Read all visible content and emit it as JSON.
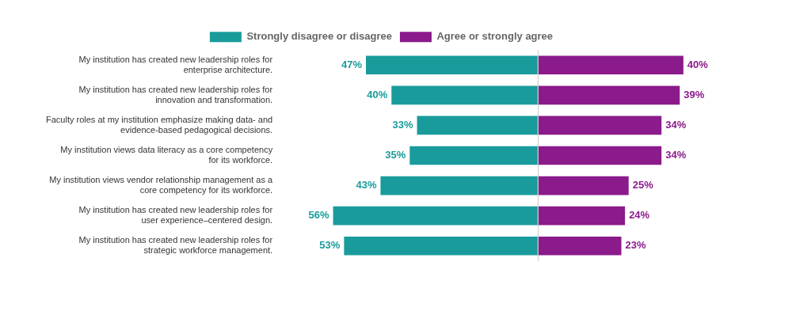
{
  "chart_data": {
    "type": "bar",
    "orientation": "horizontal",
    "categories": [
      "My institution has created new leadership roles for\nenterprise architecture.",
      "My institution has created new leadership roles for\ninnovation and transformation.",
      "Faculty roles at my institution emphasize making data- and\nevidence-based pedagogical decisions.",
      "My institution views data literacy as a core competency\nfor its workforce.",
      "My institution views vendor relationship management as a\ncore competency for its workforce.",
      "My institution has created new leadership roles for\nuser experience–centered design.",
      "My institution has created new leadership roles for\nstrategic workforce management."
    ],
    "series": [
      {
        "name": "Strongly disagree or disagree",
        "color": "#1A9B9B",
        "values": [
          47,
          40,
          33,
          35,
          43,
          56,
          53
        ],
        "value_labels": [
          "47%",
          "40%",
          "33%",
          "35%",
          "43%",
          "56%",
          "53%"
        ]
      },
      {
        "name": "Agree or strongly agree",
        "color": "#8B1A8B",
        "values": [
          40,
          39,
          34,
          34,
          25,
          24,
          23
        ],
        "value_labels": [
          "40%",
          "39%",
          "34%",
          "34%",
          "25%",
          "24%",
          "23%"
        ]
      }
    ],
    "xlim": [
      -60,
      60
    ],
    "data_labels": true,
    "tick_labels": "y",
    "grid": false,
    "legend": "top"
  }
}
